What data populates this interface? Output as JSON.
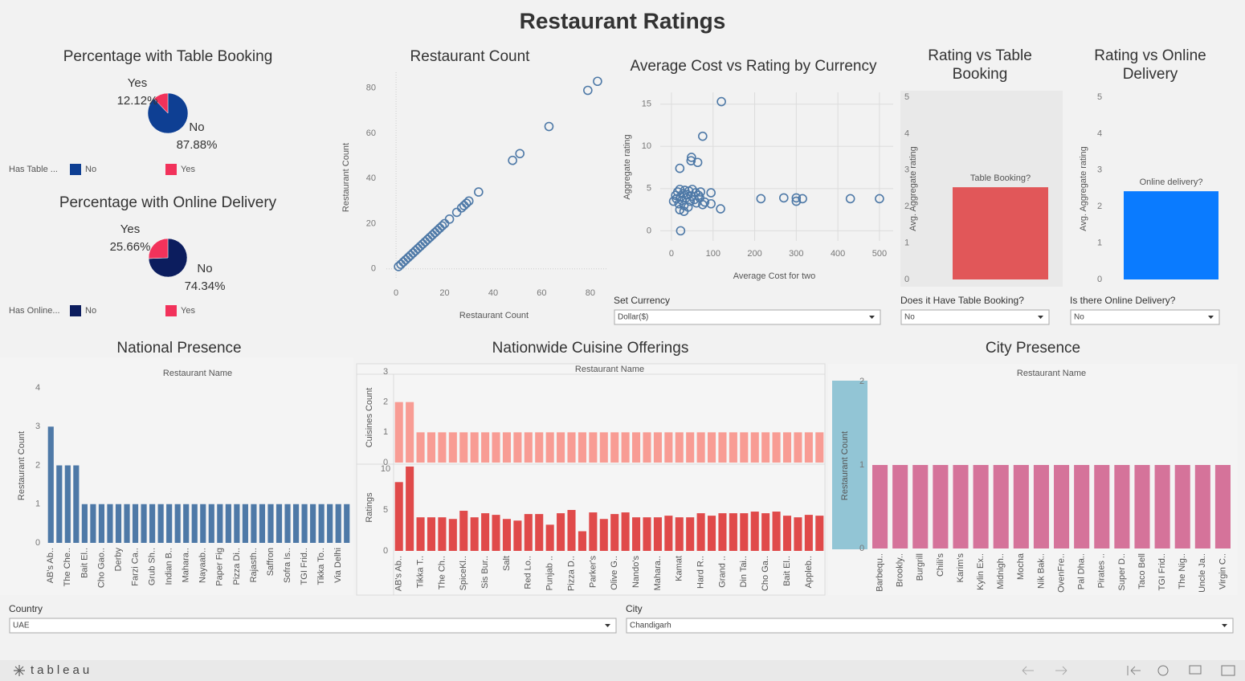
{
  "title": "Restaurant Ratings",
  "chart_data": [
    {
      "type": "pie",
      "title": "Percentage with Table Booking",
      "legend_title": "Has Table ...",
      "categories": [
        "No",
        "Yes"
      ],
      "values": [
        87.88,
        12.12
      ],
      "value_labels": [
        "87.88%",
        "12.12%"
      ],
      "colors": [
        "#0e3f93",
        "#f2325b"
      ]
    },
    {
      "type": "pie",
      "title": "Percentage with Online Delivery",
      "legend_title": "Has Online...",
      "categories": [
        "No",
        "Yes"
      ],
      "values": [
        74.34,
        25.66
      ],
      "value_labels": [
        "74.34%",
        "25.66%"
      ],
      "colors": [
        "#0c1d5e",
        "#f2325b"
      ]
    },
    {
      "type": "scatter",
      "title": "Restaurant Count",
      "x_label": "Restaurant Count",
      "y_label": "Restaurant Count",
      "x": [
        1,
        2,
        3,
        4,
        5,
        6,
        7,
        8,
        9,
        10,
        11,
        12,
        13,
        14,
        15,
        16,
        17,
        18,
        19,
        20,
        22,
        25,
        27,
        28,
        29,
        30,
        34,
        48,
        51,
        63,
        79,
        83
      ],
      "y": [
        1,
        2,
        3,
        4,
        5,
        6,
        7,
        8,
        9,
        10,
        11,
        12,
        13,
        14,
        15,
        16,
        17,
        18,
        19,
        20,
        22,
        25,
        27,
        28,
        29,
        30,
        34,
        48,
        51,
        63,
        79,
        83
      ],
      "xlim": [
        -4,
        87
      ],
      "ylim": [
        -4,
        87
      ],
      "xticks": [
        0,
        20,
        40,
        60,
        80
      ],
      "yticks": [
        0,
        20,
        40,
        60,
        80
      ],
      "color": "#4e79a7",
      "grid": false
    },
    {
      "type": "scatter",
      "title": "Average Cost vs Rating by Currency",
      "x_label": "Average Cost for two",
      "y_label": "Aggregate rating",
      "x": [
        5,
        10,
        12,
        15,
        18,
        20,
        22,
        25,
        28,
        30,
        32,
        35,
        38,
        40,
        42,
        45,
        48,
        50,
        55,
        58,
        60,
        65,
        68,
        70,
        75,
        80,
        20,
        30,
        120,
        75,
        47,
        48,
        63,
        20,
        22,
        95,
        95,
        118,
        215,
        270,
        300,
        300,
        315,
        430,
        500
      ],
      "y": [
        3.5,
        4.2,
        3.8,
        4.6,
        3.2,
        4.9,
        4.0,
        3.6,
        4.4,
        3.0,
        4.8,
        3.9,
        4.3,
        2.8,
        4.7,
        3.5,
        4.1,
        4.9,
        3.7,
        4.5,
        3.3,
        4.2,
        3.9,
        4.6,
        3.1,
        3.4,
        2.5,
        2.3,
        15.3,
        11.2,
        8.3,
        8.7,
        8.1,
        7.4,
        0,
        3.2,
        4.5,
        2.6,
        3.8,
        3.9,
        3.5,
        3.9,
        3.8,
        3.8,
        3.8
      ],
      "xlim": [
        -27,
        533
      ],
      "ylim": [
        -1.2,
        16.4
      ],
      "xticks": [
        0,
        100,
        200,
        300,
        400,
        500
      ],
      "yticks": [
        0,
        5,
        10,
        15
      ],
      "color": "#4e79a7",
      "grid": true
    },
    {
      "type": "bar",
      "title": "Rating vs Table Booking",
      "y_label": "Avg. Aggregate rating",
      "categories": [
        "Table Booking?"
      ],
      "values": [
        2.53
      ],
      "color": "#e15759",
      "ylim": [
        0,
        5
      ],
      "yticks": [
        0,
        1,
        2,
        3,
        4,
        5
      ]
    },
    {
      "type": "bar",
      "title": "Rating vs Online Delivery",
      "y_label": "Avg. Aggregate rating",
      "categories": [
        "Online delivery?"
      ],
      "values": [
        2.42
      ],
      "color": "#0a7bff",
      "ylim": [
        0,
        5
      ],
      "yticks": [
        0,
        1,
        2,
        3,
        4,
        5
      ]
    },
    {
      "type": "bar",
      "title": "National Presence",
      "x_label": "Restaurant Name",
      "y_label": "Restaurant Count",
      "categories": [
        "AB's Ab..",
        null,
        "The Che..",
        null,
        "Bait El..",
        null,
        "Cho Gao..",
        null,
        "Derby",
        null,
        "Farzi Ca..",
        null,
        "Grub Sh..",
        null,
        "Indian B..",
        null,
        "Mahara..",
        null,
        "Nayaab..",
        null,
        "Paper Fig",
        null,
        "Pizza Di..",
        null,
        "Rajasth..",
        null,
        "Saffron",
        null,
        "Sofra Is..",
        null,
        "TGI Frid..",
        null,
        "Tikka To..",
        null,
        "Via Delhi",
        null
      ],
      "values": [
        3,
        2,
        2,
        2,
        1,
        1,
        1,
        1,
        1,
        1,
        1,
        1,
        1,
        1,
        1,
        1,
        1,
        1,
        1,
        1,
        1,
        1,
        1,
        1,
        1,
        1,
        1,
        1,
        1,
        1,
        1,
        1,
        1,
        1,
        1,
        1
      ],
      "color": "#4e79a7",
      "ylim": [
        0,
        4
      ],
      "yticks": [
        0,
        1,
        2,
        3,
        4
      ]
    },
    {
      "type": "bar_panels",
      "title": "Nationwide Cuisine Offerings",
      "x_label": "Restaurant Name",
      "categories": [
        "AB's Ab..",
        null,
        "Tikka T..",
        null,
        "The Ch..",
        null,
        "SpiceKl..",
        null,
        "Sis Bur..",
        null,
        "Salt",
        null,
        "Red Lo..",
        null,
        "Punjab ..",
        null,
        "Pizza D..",
        null,
        "Parker's",
        null,
        "Olive G..",
        null,
        "Nando's",
        null,
        "Mahara..",
        null,
        "Kamat",
        null,
        "Hard R..",
        null,
        "Grand ..",
        null,
        "Din Tai..",
        null,
        "Cho Ga..",
        null,
        "Bait El..",
        null,
        "Appleb..",
        null
      ],
      "panels": [
        {
          "y_label": "Cuisines Count",
          "color": "#f89c94",
          "ylim": [
            0,
            3
          ],
          "yticks": [
            0,
            1,
            2,
            3
          ],
          "values": [
            2,
            2,
            1,
            1,
            1,
            1,
            1,
            1,
            1,
            1,
            1,
            1,
            1,
            1,
            1,
            1,
            1,
            1,
            1,
            1,
            1,
            1,
            1,
            1,
            1,
            1,
            1,
            1,
            1,
            1,
            1,
            1,
            1,
            1,
            1,
            1,
            1,
            1,
            1,
            1
          ]
        },
        {
          "y_label": "Ratings",
          "color": "#e04a4a",
          "ylim": [
            0,
            10
          ],
          "yticks": [
            0,
            5,
            10
          ],
          "values": [
            8.4,
            10.3,
            4.1,
            4.1,
            4.1,
            3.9,
            4.9,
            4.1,
            4.6,
            4.4,
            3.9,
            3.7,
            4.5,
            4.5,
            3.2,
            4.6,
            5.0,
            2.4,
            4.7,
            3.9,
            4.5,
            4.7,
            4.1,
            4.1,
            4.1,
            4.3,
            4.1,
            4.1,
            4.6,
            4.3,
            4.6,
            4.6,
            4.6,
            4.8,
            4.6,
            4.8,
            4.3,
            4.1,
            4.4,
            4.3
          ]
        }
      ]
    },
    {
      "type": "bar",
      "title": "City Presence",
      "x_label": "Restaurant Name",
      "y_label": "Restaurant Count",
      "categories": [
        "Barbequ..",
        "Brookly..",
        "Burgrill",
        "Chili's",
        "Karim's",
        "Kylin Ex..",
        "Midnigh..",
        "Mocha",
        "Nik Bak..",
        "OvenFre..",
        "Pal Dha..",
        "Pirates ..",
        "Super D..",
        "Taco Bell",
        "TGI Frid..",
        "The Nig..",
        "Uncle Ja..",
        "Virgin C.."
      ],
      "values": [
        1,
        1,
        1,
        1,
        1,
        1,
        1,
        1,
        1,
        1,
        1,
        1,
        1,
        1,
        1,
        1,
        1,
        1
      ],
      "color": "#d5739a",
      "ylim": [
        0,
        2
      ],
      "yticks": [
        0,
        1,
        2
      ]
    }
  ],
  "filters": [
    {
      "label": "Set Currency",
      "value": "Dollar($)"
    },
    {
      "label": "Does it Have Table Booking?",
      "value": "No"
    },
    {
      "label": "Is there Online Delivery?",
      "value": "No"
    },
    {
      "label": "Country",
      "value": "UAE"
    },
    {
      "label": "City",
      "value": "Chandigarh"
    }
  ],
  "footer": {
    "logo": "tableau"
  }
}
